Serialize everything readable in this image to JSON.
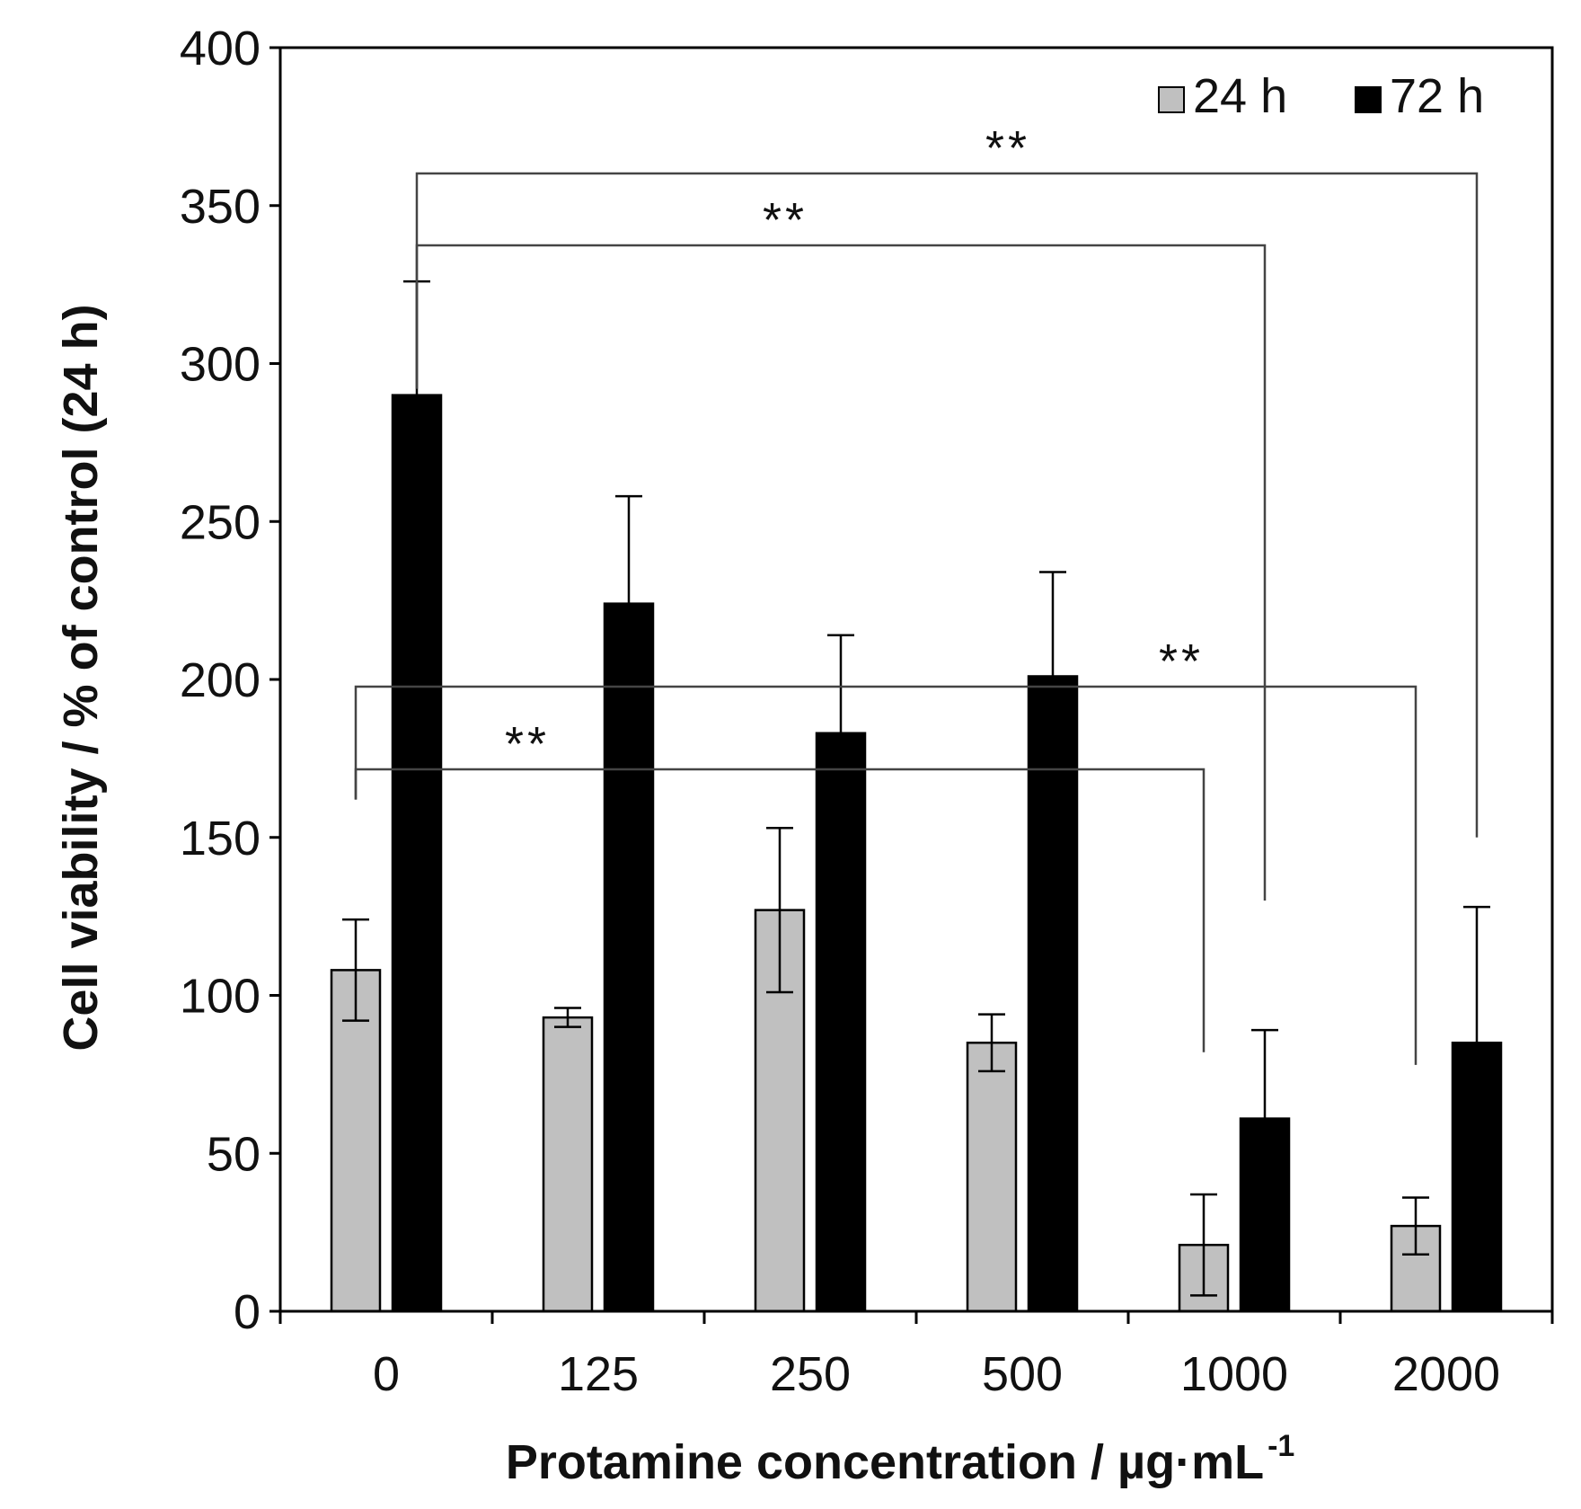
{
  "chart_data": {
    "type": "bar",
    "title": "",
    "xlabel": "Protamine concentration / µg·mL",
    "xlabel_superscript": "-1",
    "ylabel": "Cell viability / % of control (24 h)",
    "ylim": [
      0,
      400
    ],
    "yticks": [
      0,
      50,
      100,
      150,
      200,
      250,
      300,
      350,
      400
    ],
    "categories": [
      "0",
      "125",
      "250",
      "500",
      "1000",
      "2000"
    ],
    "series": [
      {
        "name": "24 h",
        "color": "#c0c0c0",
        "values": [
          108,
          93,
          127,
          85,
          21,
          27
        ],
        "error": [
          16,
          3,
          26,
          9,
          16,
          9
        ]
      },
      {
        "name": "72 h",
        "color": "#000000",
        "values": [
          290,
          224,
          183,
          201,
          61,
          85
        ],
        "error": [
          36,
          34,
          31,
          33,
          28,
          43
        ]
      }
    ],
    "legend": {
      "position": "top-right"
    },
    "significance": [
      {
        "label": "**",
        "series": "72 h",
        "from": "0",
        "to": "2000"
      },
      {
        "label": "**",
        "series": "72 h",
        "from": "0",
        "to": "1000"
      },
      {
        "label": "**",
        "series": "24 h",
        "from": "0",
        "to": "2000"
      },
      {
        "label": "**",
        "series": "24 h",
        "from": "0",
        "to": "1000"
      }
    ]
  }
}
